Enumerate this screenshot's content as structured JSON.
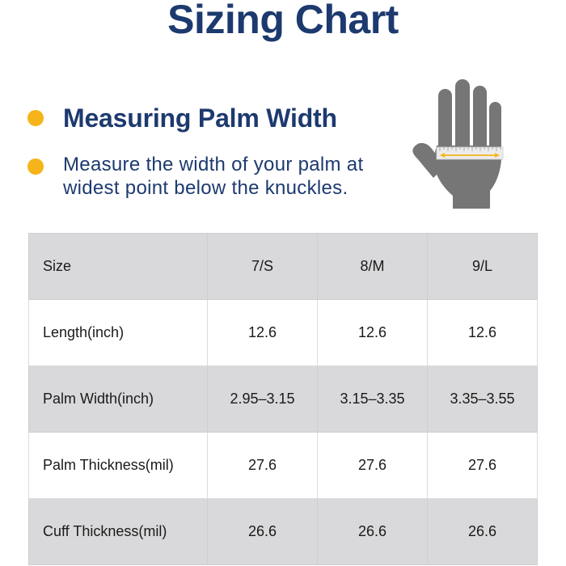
{
  "title": "Sizing Chart",
  "heading": "Measuring Palm Width",
  "description": "Measure the width of your palm at widest point below the knuckles.",
  "colors": {
    "title": "#1d3a6f",
    "bullet": "#f5b41a",
    "hand": "#777777",
    "row_shaded": "#d9d9db"
  },
  "illustration": "hand-palm-measure-icon",
  "table": {
    "columns": [
      "Size",
      "7/S",
      "8/M",
      "9/L"
    ],
    "rows": [
      {
        "label": "Length(inch)",
        "values": [
          "12.6",
          "12.6",
          "12.6"
        ]
      },
      {
        "label": "Palm Width(inch)",
        "values": [
          "2.95–3.15",
          "3.15–3.35",
          "3.35–3.55"
        ]
      },
      {
        "label": "Palm Thickness(mil)",
        "values": [
          "27.6",
          "27.6",
          "27.6"
        ]
      },
      {
        "label": "Cuff Thickness(mil)",
        "values": [
          "26.6",
          "26.6",
          "26.6"
        ]
      }
    ]
  }
}
